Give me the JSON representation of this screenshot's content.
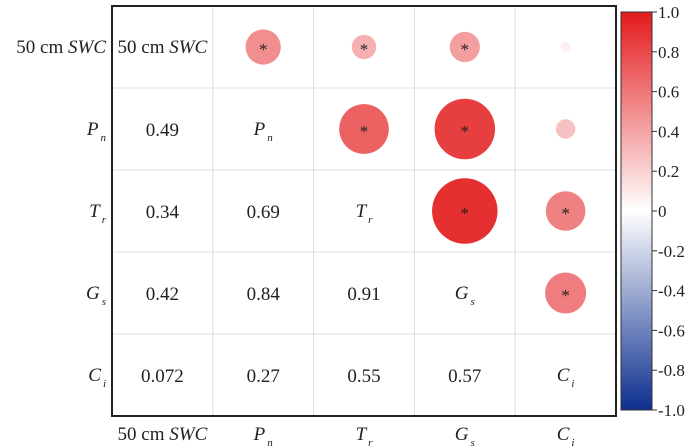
{
  "chart_data": {
    "type": "heatmap",
    "subtype": "correlation-matrix",
    "variables": [
      {
        "id": "swc",
        "label": "50 cm ",
        "italic": "SWC",
        "sub": ""
      },
      {
        "id": "pn",
        "label": "",
        "italic": "P",
        "sub": "n"
      },
      {
        "id": "tr",
        "label": "",
        "italic": "T",
        "sub": "r"
      },
      {
        "id": "gs",
        "label": "",
        "italic": "G",
        "sub": "s"
      },
      {
        "id": "ci",
        "label": "",
        "italic": "C",
        "sub": "i"
      }
    ],
    "lower_triangle_labels": [
      [
        "",
        "",
        "",
        "",
        ""
      ],
      [
        "0.49",
        "",
        "",
        "",
        ""
      ],
      [
        "0.34",
        "0.69",
        "",
        "",
        ""
      ],
      [
        "0.42",
        "0.84",
        "0.91",
        "",
        ""
      ],
      [
        "0.072",
        "0.27",
        "0.55",
        "0.57",
        ""
      ]
    ],
    "matrix": [
      [
        1,
        0.49,
        0.34,
        0.42,
        0.072
      ],
      [
        0.49,
        1,
        0.69,
        0.84,
        0.27
      ],
      [
        0.34,
        0.69,
        1,
        0.91,
        0.55
      ],
      [
        0.42,
        0.84,
        0.91,
        1,
        0.57
      ],
      [
        0.072,
        0.27,
        0.55,
        0.57,
        1
      ]
    ],
    "significant_upper": [
      [
        false,
        true,
        true,
        true,
        false
      ],
      [
        false,
        false,
        true,
        true,
        false
      ],
      [
        false,
        false,
        false,
        true,
        true
      ],
      [
        false,
        false,
        false,
        false,
        true
      ],
      [
        false,
        false,
        false,
        false,
        false
      ]
    ],
    "significance_marker": "*",
    "colorbar": {
      "range": [
        -1.0,
        1.0
      ],
      "ticks": [
        "1.0",
        "0.8",
        "0.6",
        "0.4",
        "0.2",
        "0",
        "-0.2",
        "-0.4",
        "-0.6",
        "-0.8",
        "-1.0"
      ],
      "tick_values": [
        1.0,
        0.8,
        0.6,
        0.4,
        0.2,
        0,
        -0.2,
        -0.4,
        -0.6,
        -0.8,
        -1.0
      ],
      "colors": {
        "high": "#e31a1c",
        "mid": "#ffffff",
        "low": "#0d2f8f"
      }
    },
    "grid": true
  }
}
